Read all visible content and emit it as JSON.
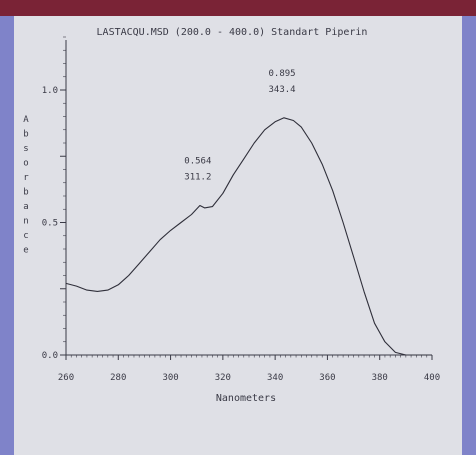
{
  "chart_data": {
    "type": "line",
    "title": "LASTACQU.MSD  (200.0 - 400.0)  Standart Piperin",
    "xlabel": "Nanometers",
    "ylabel": "Absorbance",
    "xlim": [
      260,
      400
    ],
    "ylim": [
      0.0,
      1.2
    ],
    "x_ticks": [
      "260",
      "280",
      "300",
      "320",
      "340",
      "360",
      "380",
      "400"
    ],
    "y_ticks": [
      "0.0",
      "0.5",
      "1.0"
    ],
    "grid": false,
    "series": [
      {
        "x": [
          260,
          264,
          268,
          272,
          276,
          280,
          284,
          288,
          292,
          296,
          300,
          304,
          308,
          311.2,
          313,
          316,
          320,
          324,
          328,
          332,
          336,
          340,
          343.4,
          347,
          350,
          354,
          358,
          362,
          366,
          370,
          374,
          378,
          382,
          386,
          390,
          394,
          400
        ],
        "y": [
          0.27,
          0.26,
          0.245,
          0.24,
          0.245,
          0.265,
          0.3,
          0.345,
          0.39,
          0.435,
          0.47,
          0.5,
          0.53,
          0.564,
          0.555,
          0.56,
          0.61,
          0.68,
          0.74,
          0.8,
          0.85,
          0.88,
          0.895,
          0.885,
          0.86,
          0.8,
          0.72,
          0.62,
          0.5,
          0.37,
          0.24,
          0.12,
          0.05,
          0.01,
          0.0,
          0.0,
          0.0
        ]
      }
    ],
    "annotations": [
      {
        "x": 311.2,
        "y": 0.564,
        "value_label": "0.564",
        "wavelength_label": "311.2"
      },
      {
        "x": 343.4,
        "y": 0.895,
        "value_label": "0.895",
        "wavelength_label": "343.4"
      }
    ]
  }
}
